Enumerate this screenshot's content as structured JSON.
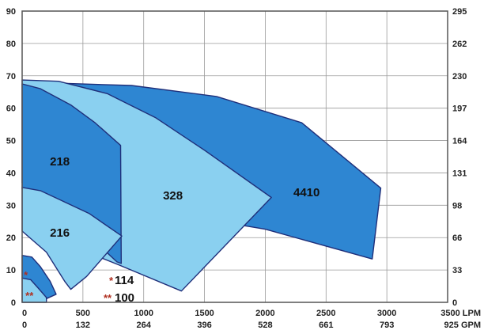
{
  "chart_data": {
    "type": "area",
    "title": "",
    "x_primary": {
      "unit_label": "LPM",
      "range": [
        0,
        3500
      ],
      "ticks": [
        0,
        500,
        1000,
        1500,
        2000,
        2500,
        3000,
        3500
      ]
    },
    "x_secondary": {
      "unit_label": "GPM",
      "tick_labels": [
        "0",
        "132",
        "264",
        "396",
        "528",
        "661",
        "793",
        "925"
      ]
    },
    "y_left": {
      "range": [
        0,
        90
      ],
      "ticks": [
        0,
        10,
        20,
        30,
        40,
        50,
        60,
        70,
        80,
        90
      ]
    },
    "y_right": {
      "tick_labels": [
        "0",
        "33",
        "66",
        "98",
        "131",
        "164",
        "197",
        "230",
        "262",
        "295"
      ]
    },
    "grid": true,
    "regions": [
      {
        "name": "4410",
        "color": "#2e86d2",
        "outline": [
          [
            320,
            67.7
          ],
          [
            900,
            67
          ],
          [
            1600,
            63.6
          ],
          [
            2300,
            55.5
          ],
          [
            2950,
            35.3
          ],
          [
            2880,
            13.4
          ],
          [
            2000,
            22.6
          ],
          [
            1550,
            25.4
          ],
          [
            1100,
            38
          ],
          [
            700,
            52
          ]
        ],
        "label_at": [
          2340,
          34
        ]
      },
      {
        "name": "328",
        "color": "#8ad0f0",
        "outline": [
          [
            0,
            68.7
          ],
          [
            300,
            68.3
          ],
          [
            700,
            64.5
          ],
          [
            1100,
            57
          ],
          [
            1500,
            47
          ],
          [
            2050,
            32.4
          ],
          [
            1310,
            3.5
          ],
          [
            800,
            11.5
          ],
          [
            500,
            16
          ],
          [
            0,
            37
          ]
        ],
        "label_at": [
          1240,
          33
        ]
      },
      {
        "name": "218",
        "color": "#2e86d2",
        "outline": [
          [
            0,
            67.5
          ],
          [
            150,
            66
          ],
          [
            400,
            61
          ],
          [
            600,
            55.5
          ],
          [
            810,
            48.5
          ],
          [
            815,
            12
          ],
          [
            780,
            12.5
          ],
          [
            680,
            16
          ],
          [
            450,
            25.5
          ],
          [
            250,
            31.5
          ],
          [
            0,
            35
          ]
        ],
        "label_at": [
          310,
          43.5
        ]
      },
      {
        "name": "216",
        "color": "#8ad0f0",
        "outline": [
          [
            0,
            35.5
          ],
          [
            150,
            34.5
          ],
          [
            350,
            31
          ],
          [
            550,
            27.5
          ],
          [
            820,
            20.5
          ],
          [
            530,
            8
          ],
          [
            400,
            4
          ],
          [
            350,
            6.5
          ],
          [
            200,
            15.5
          ],
          [
            0,
            22
          ]
        ],
        "label_at": [
          310,
          21.5
        ]
      },
      {
        "name": "114",
        "color": "#2e86d2",
        "outline": [
          [
            0,
            14.5
          ],
          [
            80,
            14
          ],
          [
            150,
            11
          ],
          [
            230,
            6.5
          ],
          [
            280,
            2.5
          ],
          [
            180,
            0.8
          ],
          [
            100,
            3
          ],
          [
            0,
            7.5
          ]
        ],
        "label_at": [
          30,
          8.3
        ]
      },
      {
        "name": "100",
        "color": "#8ad0f0",
        "outline": [
          [
            0,
            7.5
          ],
          [
            70,
            7
          ],
          [
            130,
            4.5
          ],
          [
            200,
            1.5
          ],
          [
            200,
            0
          ],
          [
            0,
            0
          ]
        ],
        "label_at": [
          60,
          2
        ]
      }
    ],
    "annotations": [
      {
        "stars": "*",
        "text": "114"
      },
      {
        "stars": "**",
        "text": "100"
      }
    ],
    "markers": [
      {
        "stars": "*",
        "region": "114"
      },
      {
        "stars": "**",
        "region": "100"
      }
    ]
  }
}
